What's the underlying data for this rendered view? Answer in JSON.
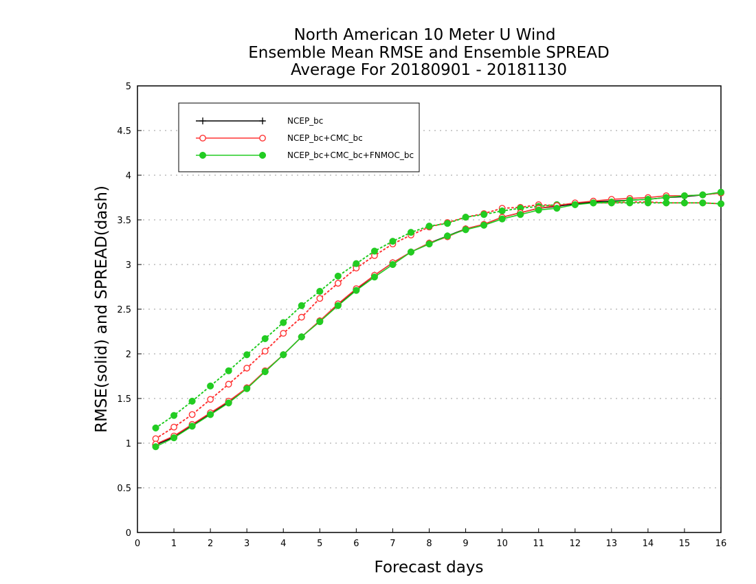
{
  "chart_data": {
    "type": "line",
    "title": [
      "North American 10 Meter U Wind",
      "Ensemble Mean RMSE and Ensemble SPREAD",
      "Average For 20180901 - 20181130"
    ],
    "xlabel": "Forecast days",
    "ylabel": "RMSE(solid) and SPREAD(dash)",
    "xlim": [
      0,
      16
    ],
    "ylim": [
      0,
      5
    ],
    "xticks": [
      0,
      1,
      2,
      3,
      4,
      5,
      6,
      7,
      8,
      9,
      10,
      11,
      12,
      13,
      14,
      15,
      16
    ],
    "yticks": [
      0,
      0.5,
      1,
      1.5,
      2,
      2.5,
      3,
      3.5,
      4,
      4.5,
      5
    ],
    "ytick_labels": [
      "0",
      "0.5",
      "1",
      "1.5",
      "2",
      "2.5",
      "3",
      "3.5",
      "4",
      "4.5",
      "5"
    ],
    "grid": "dotted horizontal",
    "legend_position": "top-left",
    "x": [
      0.5,
      1,
      1.5,
      2,
      2.5,
      3,
      3.5,
      4,
      4.5,
      5,
      5.5,
      6,
      6.5,
      7,
      7.5,
      8,
      8.5,
      9,
      9.5,
      10,
      10.5,
      11,
      11.5,
      12,
      12.5,
      13,
      13.5,
      14,
      14.5,
      15,
      15.5,
      16
    ],
    "series": [
      {
        "name": "NCEP_bc",
        "color": "#000000",
        "marker": "plus",
        "rmse": [
          0.98,
          1.07,
          1.2,
          1.33,
          1.46,
          1.62,
          1.8,
          1.99,
          2.19,
          2.37,
          2.55,
          2.72,
          2.88,
          3.02,
          3.14,
          3.24,
          3.32,
          3.4,
          3.45,
          3.53,
          3.58,
          3.63,
          3.65,
          3.68,
          3.7,
          3.71,
          3.72,
          3.73,
          3.75,
          3.76,
          3.78,
          3.8
        ],
        "spread": null
      },
      {
        "name": "NCEP_bc+CMC_bc",
        "color": "#ff3333",
        "marker": "open-circle",
        "rmse": [
          0.99,
          1.08,
          1.21,
          1.34,
          1.47,
          1.62,
          1.81,
          1.99,
          2.19,
          2.37,
          2.56,
          2.73,
          2.88,
          3.02,
          3.14,
          3.24,
          3.31,
          3.4,
          3.45,
          3.53,
          3.58,
          3.63,
          3.66,
          3.69,
          3.71,
          3.73,
          3.74,
          3.75,
          3.77,
          3.77,
          3.78,
          3.8
        ],
        "spread": [
          1.05,
          1.18,
          1.32,
          1.49,
          1.66,
          1.84,
          2.03,
          2.23,
          2.41,
          2.62,
          2.79,
          2.96,
          3.1,
          3.23,
          3.33,
          3.42,
          3.47,
          3.53,
          3.57,
          3.63,
          3.64,
          3.67,
          3.66,
          3.68,
          3.69,
          3.69,
          3.7,
          3.7,
          3.69,
          3.69,
          3.69,
          3.68
        ]
      },
      {
        "name": "NCEP_bc+CMC_bc+FNMOC_bc",
        "color": "#22cc22",
        "marker": "filled-circle",
        "rmse": [
          0.96,
          1.06,
          1.19,
          1.32,
          1.45,
          1.61,
          1.8,
          1.99,
          2.19,
          2.36,
          2.54,
          2.71,
          2.86,
          3.0,
          3.14,
          3.23,
          3.32,
          3.39,
          3.44,
          3.51,
          3.56,
          3.61,
          3.63,
          3.67,
          3.69,
          3.7,
          3.72,
          3.73,
          3.75,
          3.77,
          3.78,
          3.81
        ],
        "spread": [
          1.17,
          1.31,
          1.47,
          1.64,
          1.81,
          1.99,
          2.17,
          2.35,
          2.54,
          2.7,
          2.87,
          3.01,
          3.15,
          3.26,
          3.36,
          3.43,
          3.46,
          3.53,
          3.56,
          3.6,
          3.63,
          3.65,
          3.67,
          3.68,
          3.69,
          3.69,
          3.69,
          3.69,
          3.69,
          3.69,
          3.69,
          3.68
        ]
      }
    ]
  }
}
